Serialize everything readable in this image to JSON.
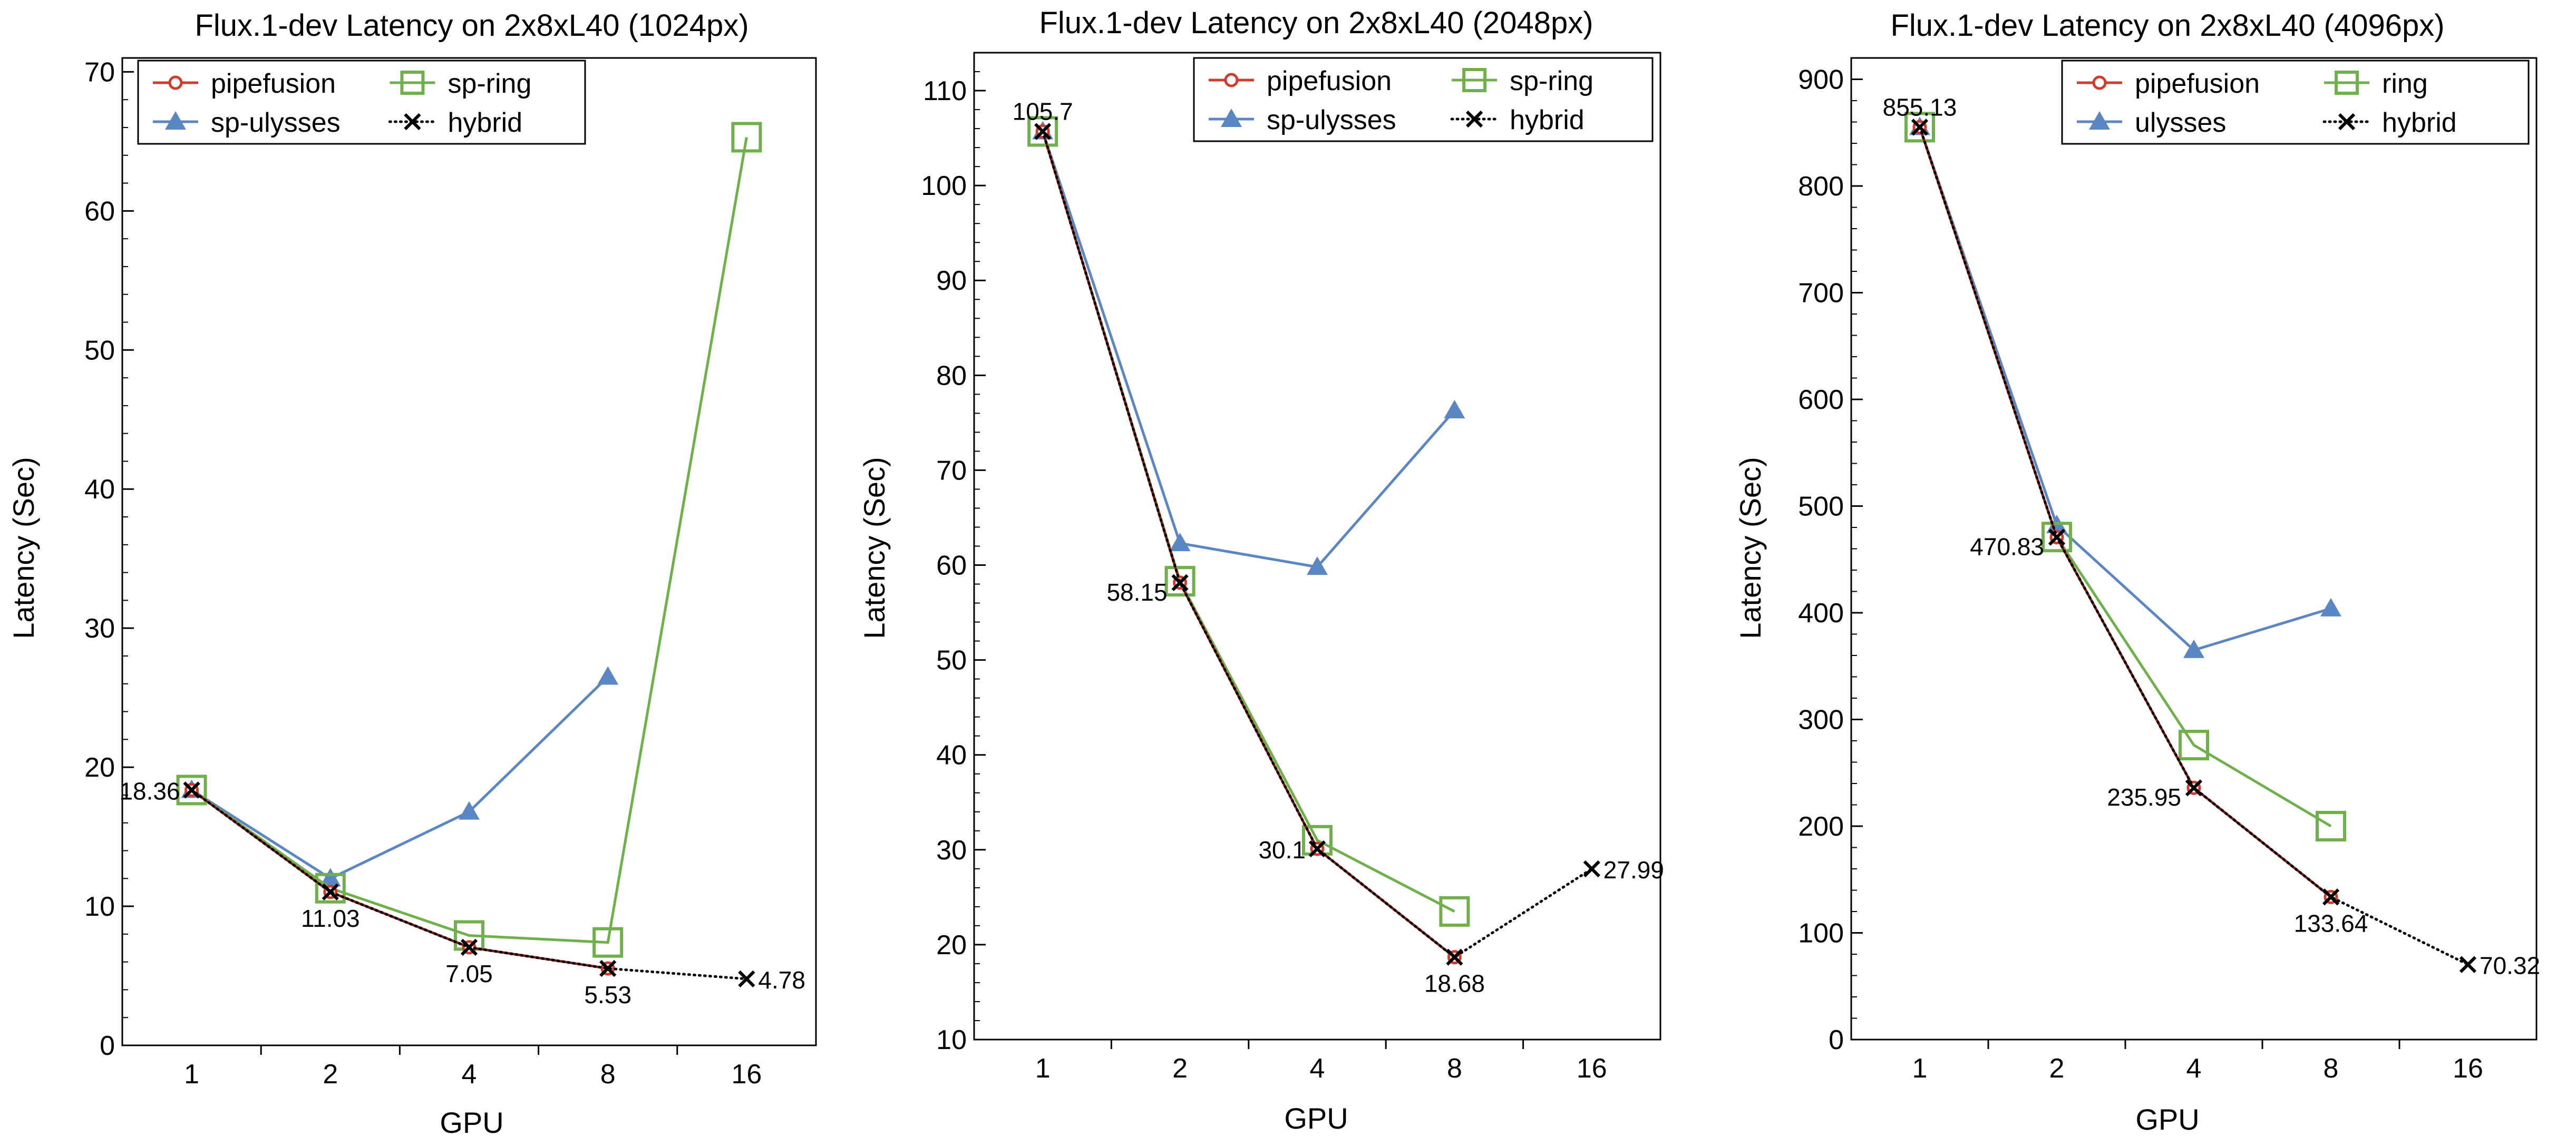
{
  "figure": {
    "colors": {
      "pipefusion": "#d23b2b",
      "ulysses": "#5b86c4",
      "ring": "#6fb04a",
      "hybrid": "#000000",
      "overlay": "#6a1a12"
    }
  },
  "chart_data": [
    {
      "type": "line",
      "title": "Flux.1-dev Latency on 2x8xL40 (1024px)",
      "xlabel": "GPU",
      "ylabel": "Latency (Sec)",
      "categories": [
        "1",
        "2",
        "4",
        "8",
        "16"
      ],
      "ylim": [
        0,
        71
      ],
      "yticks": [
        0,
        10,
        20,
        30,
        40,
        50,
        60,
        70
      ],
      "ytick_labels": [
        "0",
        "10",
        "20",
        "30",
        "40",
        "50",
        "60",
        "70"
      ],
      "legend": [
        {
          "key": "pipefusion",
          "label": "pipefusion"
        },
        {
          "key": "ring",
          "label": "sp-ring"
        },
        {
          "key": "ulysses",
          "label": "sp-ulysses"
        },
        {
          "key": "hybrid",
          "label": "hybrid"
        }
      ],
      "series": [
        {
          "key": "pipefusion",
          "name": "pipefusion",
          "values": [
            18.36,
            11.03,
            7.05,
            5.53,
            null
          ]
        },
        {
          "key": "ulysses",
          "name": "sp-ulysses",
          "values": [
            18.36,
            12.0,
            16.8,
            26.5,
            null
          ]
        },
        {
          "key": "ring",
          "name": "sp-ring",
          "values": [
            18.36,
            11.3,
            7.9,
            7.4,
            65.3
          ]
        },
        {
          "key": "hybrid",
          "name": "hybrid",
          "values": [
            18.36,
            11.03,
            7.05,
            5.53,
            4.78
          ]
        }
      ],
      "annotations": [
        {
          "label": "18.36",
          "x": "1",
          "y": 18.36,
          "pos": "left"
        },
        {
          "label": "11.03",
          "x": "2",
          "y": 11.03,
          "pos": "below"
        },
        {
          "label": "7.05",
          "x": "4",
          "y": 7.05,
          "pos": "below"
        },
        {
          "label": "5.53",
          "x": "8",
          "y": 5.53,
          "pos": "below"
        },
        {
          "label": "4.78",
          "x": "16",
          "y": 4.78,
          "pos": "right"
        }
      ]
    },
    {
      "type": "line",
      "title": "Flux.1-dev Latency on 2x8xL40 (2048px)",
      "xlabel": "GPU",
      "ylabel": "Latency (Sec)",
      "categories": [
        "1",
        "2",
        "4",
        "8",
        "16"
      ],
      "ylim": [
        10,
        114
      ],
      "yticks": [
        10,
        20,
        30,
        40,
        50,
        60,
        70,
        80,
        90,
        100,
        110
      ],
      "ytick_labels": [
        "10",
        "20",
        "30",
        "40",
        "50",
        "60",
        "70",
        "80",
        "90",
        "100",
        "110"
      ],
      "legend": [
        {
          "key": "pipefusion",
          "label": "pipefusion"
        },
        {
          "key": "ring",
          "label": "sp-ring"
        },
        {
          "key": "ulysses",
          "label": "sp-ulysses"
        },
        {
          "key": "hybrid",
          "label": "hybrid"
        }
      ],
      "series": [
        {
          "key": "pipefusion",
          "name": "pipefusion",
          "values": [
            105.7,
            58.15,
            30.1,
            18.68,
            null
          ]
        },
        {
          "key": "ulysses",
          "name": "sp-ulysses",
          "values": [
            105.7,
            62.3,
            59.8,
            76.3,
            null
          ]
        },
        {
          "key": "ring",
          "name": "sp-ring",
          "values": [
            105.7,
            58.3,
            31.0,
            23.5,
            null
          ]
        },
        {
          "key": "hybrid",
          "name": "hybrid",
          "values": [
            105.7,
            58.15,
            30.1,
            18.68,
            27.99
          ]
        }
      ],
      "annotations": [
        {
          "label": "105.7",
          "x": "1",
          "y": 105.7,
          "pos": "above"
        },
        {
          "label": "58.15",
          "x": "2",
          "y": 58.15,
          "pos": "left-below"
        },
        {
          "label": "30.1",
          "x": "4",
          "y": 30.1,
          "pos": "left"
        },
        {
          "label": "18.68",
          "x": "8",
          "y": 18.68,
          "pos": "below"
        },
        {
          "label": "27.99",
          "x": "16",
          "y": 27.99,
          "pos": "right"
        }
      ]
    },
    {
      "type": "line",
      "title": "Flux.1-dev Latency on 2x8xL40 (4096px)",
      "xlabel": "GPU",
      "ylabel": "Latency (Sec)",
      "categories": [
        "1",
        "2",
        "4",
        "8",
        "16"
      ],
      "ylim": [
        0,
        920
      ],
      "yticks": [
        0,
        100,
        200,
        300,
        400,
        500,
        600,
        700,
        800,
        900
      ],
      "ytick_labels": [
        "0",
        "100",
        "200",
        "300",
        "400",
        "500",
        "600",
        "700",
        "800",
        "900"
      ],
      "legend": [
        {
          "key": "pipefusion",
          "label": "pipefusion"
        },
        {
          "key": "ring",
          "label": "ring"
        },
        {
          "key": "ulysses",
          "label": "ulysses"
        },
        {
          "key": "hybrid",
          "label": "hybrid"
        }
      ],
      "series": [
        {
          "key": "pipefusion",
          "name": "pipefusion",
          "values": [
            855.13,
            470.83,
            235.95,
            133.64,
            null
          ]
        },
        {
          "key": "ulysses",
          "name": "ulysses",
          "values": [
            855.13,
            482.0,
            365.0,
            404.0,
            null
          ]
        },
        {
          "key": "ring",
          "name": "ring",
          "values": [
            855.13,
            471.0,
            276.0,
            200.0,
            null
          ]
        },
        {
          "key": "hybrid",
          "name": "hybrid",
          "values": [
            855.13,
            470.83,
            235.95,
            133.64,
            70.32
          ]
        }
      ],
      "annotations": [
        {
          "label": "855.13",
          "x": "1",
          "y": 855.13,
          "pos": "above"
        },
        {
          "label": "470.83",
          "x": "2",
          "y": 470.83,
          "pos": "left-below"
        },
        {
          "label": "235.95",
          "x": "4",
          "y": 235.95,
          "pos": "left-below"
        },
        {
          "label": "133.64",
          "x": "8",
          "y": 133.64,
          "pos": "below"
        },
        {
          "label": "70.32",
          "x": "16",
          "y": 70.32,
          "pos": "right"
        }
      ]
    }
  ]
}
